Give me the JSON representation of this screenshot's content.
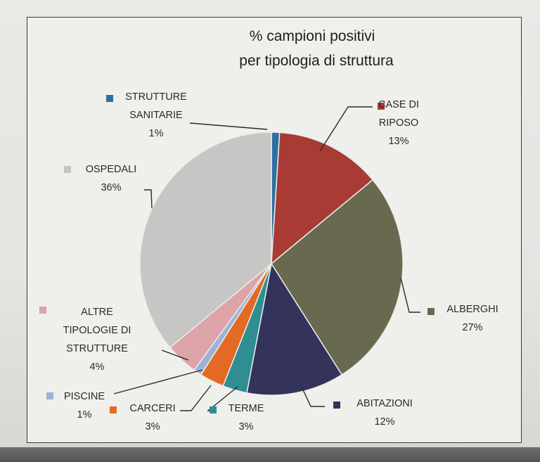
{
  "chart_data": {
    "type": "pie",
    "title_lines": [
      "% campioni positivi",
      "per tipologia di struttura"
    ],
    "slices": [
      {
        "name": "STRUTTURE SANITARIE",
        "label_lines": [
          "STRUTTURE",
          "SANITARIE"
        ],
        "value": 1,
        "value_label": "1%",
        "color": "#2d6fa3"
      },
      {
        "name": "CASE DI RIPOSO",
        "label_lines": [
          "CASE DI",
          "RIPOSO"
        ],
        "value": 13,
        "value_label": "13%",
        "color": "#a83b33"
      },
      {
        "name": "ALBERGHI",
        "label_lines": [
          "ALBERGHI"
        ],
        "value": 27,
        "value_label": "27%",
        "color": "#68694f"
      },
      {
        "name": "ABITAZIONI",
        "label_lines": [
          "ABITAZIONI"
        ],
        "value": 12,
        "value_label": "12%",
        "color": "#33335c"
      },
      {
        "name": "TERME",
        "label_lines": [
          "TERME"
        ],
        "value": 3,
        "value_label": "3%",
        "color": "#2f8e92"
      },
      {
        "name": "CARCERI",
        "label_lines": [
          "CARCERI"
        ],
        "value": 3,
        "value_label": "3%",
        "color": "#e26a24"
      },
      {
        "name": "PISCINE",
        "label_lines": [
          "PISCINE"
        ],
        "value": 1,
        "value_label": "1%",
        "color": "#9fb2d6"
      },
      {
        "name": "ALTRE TIPOLOGIE DI STRUTTURE",
        "label_lines": [
          "ALTRE",
          "TIPOLOGIE DI",
          "STRUTTURE"
        ],
        "value": 4,
        "value_label": "4%",
        "color": "#dca3a8"
      },
      {
        "name": "OSPEDALI",
        "label_lines": [
          "OSPEDALI"
        ],
        "value": 36,
        "value_label": "36%",
        "color": "#c6c6c4"
      }
    ],
    "start_angle_deg": 0,
    "direction": "clockwise",
    "legend": "none",
    "data_labels": "outside-with-leader-lines"
  }
}
